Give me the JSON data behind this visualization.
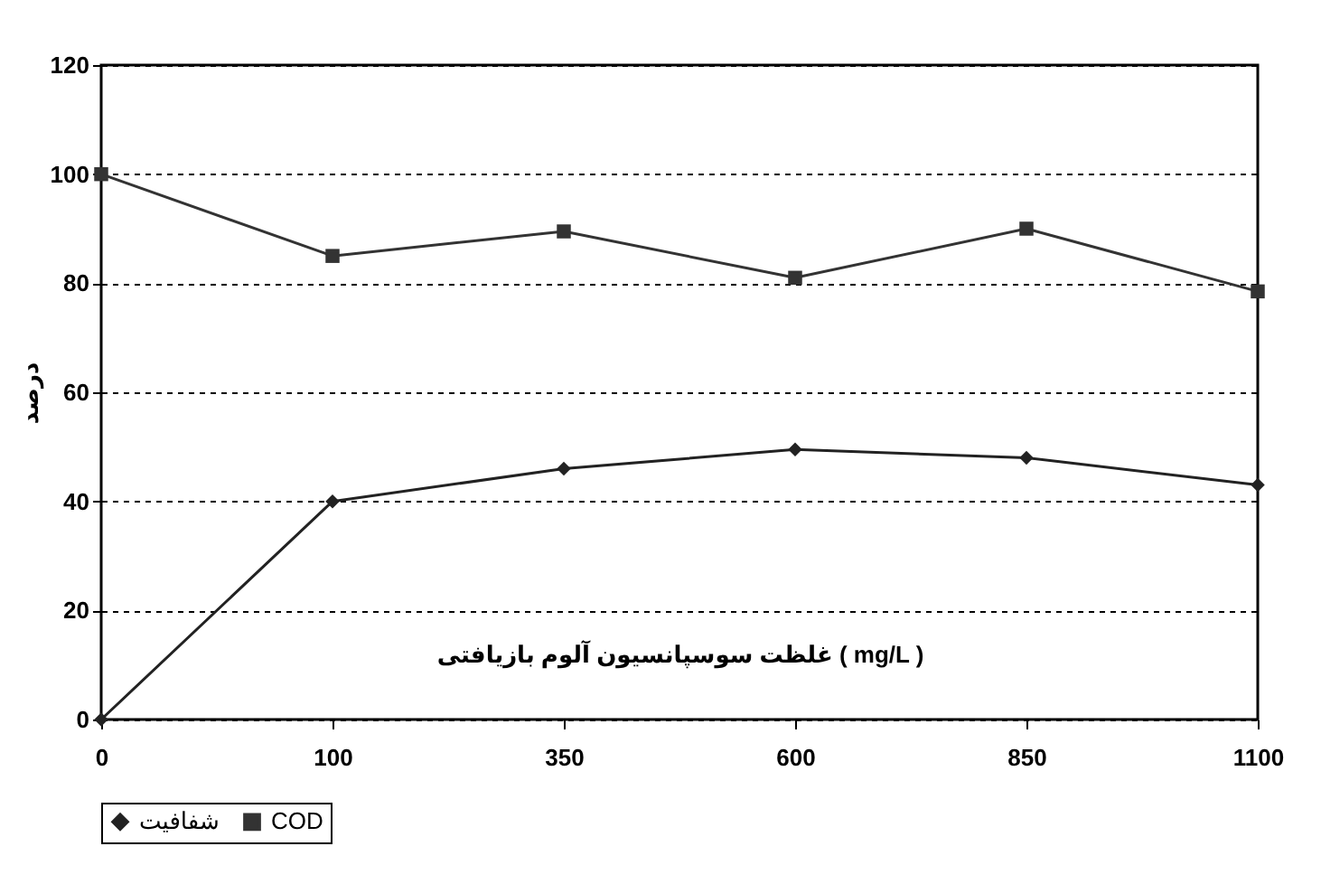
{
  "chart_data": {
    "type": "line",
    "xlabel": "غلظت سوسپانسیون آلوم بازیافتی ( mg/L )",
    "ylabel": "درصد",
    "categories": [
      "0",
      "100",
      "350",
      "600",
      "850",
      "1100"
    ],
    "series": [
      {
        "name": "شفافیت",
        "color": "#222222",
        "marker": "diamond",
        "values": [
          0,
          40,
          46,
          49.5,
          48,
          43
        ]
      },
      {
        "name": "COD",
        "color": "#333333",
        "marker": "square",
        "values": [
          100,
          85,
          89.5,
          81,
          90,
          78.5
        ]
      }
    ],
    "ylim": [
      0,
      120
    ],
    "yticks": [
      0,
      20,
      40,
      60,
      80,
      100,
      120
    ],
    "grid": "y",
    "legend": "bottom",
    "line_style": "solid"
  }
}
